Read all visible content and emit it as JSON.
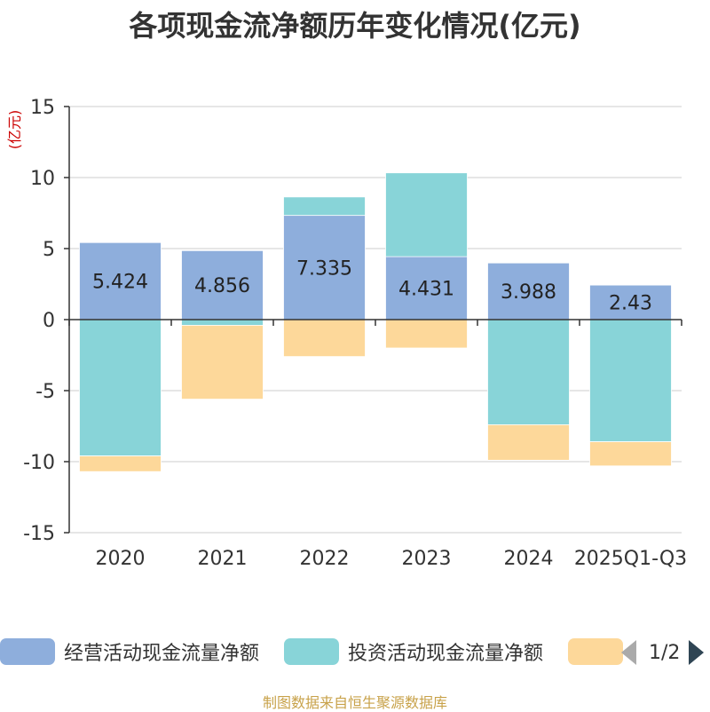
{
  "chart_data": {
    "type": "bar",
    "stacked": true,
    "title": "各项现金流净额历年变化情况(亿元)",
    "ylabel": "(亿元)",
    "ylim": [
      -15,
      15
    ],
    "yticks": [
      15,
      10,
      5,
      0,
      -5,
      -10,
      -15
    ],
    "categories": [
      "2020",
      "2021",
      "2022",
      "2023",
      "2024",
      "2025Q1-Q3"
    ],
    "series": [
      {
        "name": "经营活动现金流量净额",
        "color": "#8eaedc",
        "values": [
          5.424,
          4.856,
          7.335,
          4.431,
          3.988,
          2.43
        ],
        "show_labels": true
      },
      {
        "name": "投资活动现金流量净额",
        "color": "#88d4d8",
        "values": [
          -9.6,
          -0.4,
          1.3,
          5.9,
          -7.4,
          -8.6
        ],
        "show_labels": false
      },
      {
        "name": "",
        "color": "#fdd89a",
        "values": [
          -1.1,
          -5.2,
          -2.6,
          -2.0,
          -2.5,
          -1.7
        ],
        "show_labels": false
      }
    ],
    "legend": {
      "position": "bottom",
      "page": "1/2"
    },
    "source": "制图数据来自恒生聚源数据库"
  }
}
